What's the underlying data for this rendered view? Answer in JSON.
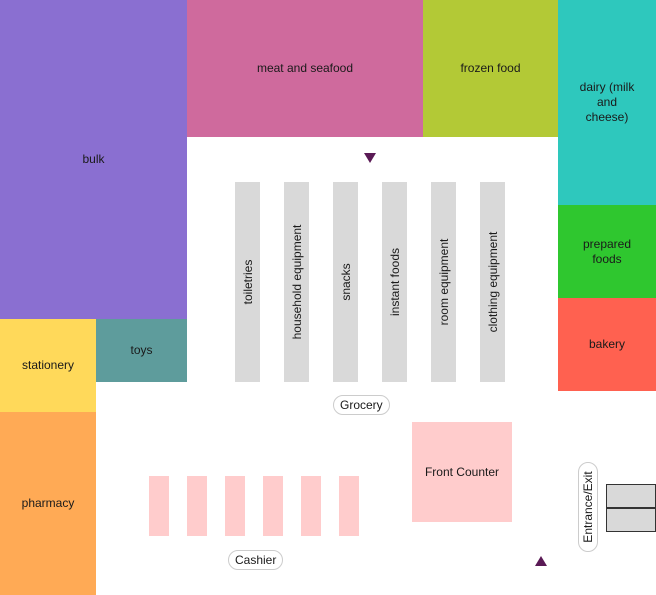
{
  "colors": {
    "bulk": "#8a6fd1",
    "meat_seafood": "#cf6a9d",
    "frozen": "#b3c936",
    "dairy": "#2ec8bd",
    "prepared": "#2fc72f",
    "bakery": "#ff6150",
    "stationery": "#ffd95a",
    "toys": "#5e9c9c",
    "pharmacy": "#ffaa55",
    "aisle": "#d9d9d9",
    "counter": "#ffcccc",
    "marker": "#5a1a55"
  },
  "departments": {
    "bulk": "bulk",
    "meat_seafood": "meat and seafood",
    "frozen": "frozen food",
    "dairy": "dairy (milk and cheese)",
    "prepared": "prepared foods",
    "bakery": "bakery",
    "stationery": "stationery",
    "toys": "toys",
    "pharmacy": "pharmacy"
  },
  "aisles": [
    "toiletries",
    "household equipment",
    "snacks",
    "instant foods",
    "room equipment",
    "clothing equipment"
  ],
  "areas": {
    "grocery": "Grocery",
    "front_counter": "Front Counter",
    "cashier": "Cashier",
    "entrance": "Entrance/Exit"
  },
  "markers": [
    {
      "name": "marker-top",
      "direction": "down"
    },
    {
      "name": "marker-bottom",
      "direction": "up"
    }
  ]
}
